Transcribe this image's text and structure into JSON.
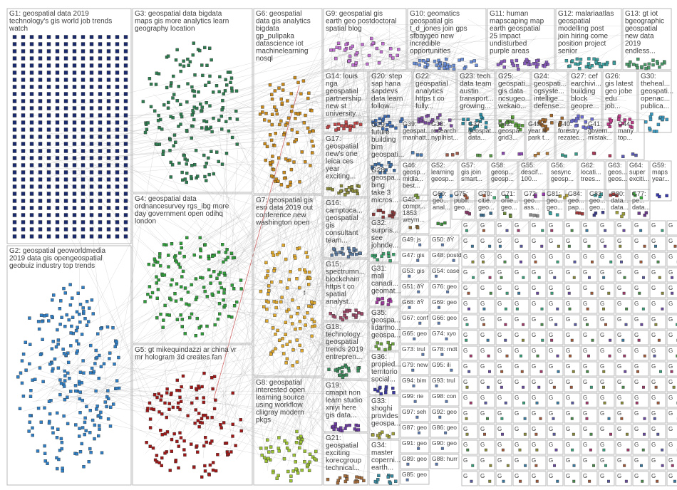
{
  "groups": [
    {
      "id": "G1",
      "lines": [
        "G1: geospatial data 2019",
        "technology's gis world job trends",
        "watch"
      ],
      "color": "#1a2a6e",
      "kind": "grid"
    },
    {
      "id": "G2",
      "lines": [
        "G2: geospatial geoworldmedia",
        "2019 data gis opengeospatial",
        "geobuiz industry top trends"
      ],
      "color": "#2f7fc6",
      "kind": "cluster"
    },
    {
      "id": "G3",
      "lines": [
        "G3: geospatial data bigdata",
        "maps gis more analytics learn",
        "geography location"
      ],
      "color": "#2e7d50",
      "kind": "cluster"
    },
    {
      "id": "G4",
      "lines": [
        "G4: geospatial data",
        "ordnancesurvey rgs_ibg more",
        "day government open odihq",
        "london"
      ],
      "color": "#2f9e3a",
      "kind": "cluster"
    },
    {
      "id": "G5",
      "lines": [
        "G5: gt mikequindazzi ar china vr",
        "mr hologram 3d creates fan"
      ],
      "color": "#a01818",
      "kind": "cluster"
    },
    {
      "id": "G6",
      "lines": [
        "G6: geospatial",
        "data gis analytics",
        "bigdata",
        "gp_pulipaka",
        "datascience iot",
        "machinelearning",
        "nosql"
      ],
      "color": "#c98a1a",
      "kind": "cluster"
    },
    {
      "id": "G7",
      "lines": [
        "G7: geospatial gis",
        "esri data 2019 out",
        "conference new",
        "washington open"
      ],
      "color": "#e0a82a",
      "kind": "cluster"
    },
    {
      "id": "G8",
      "lines": [
        "G8: geospatial",
        "interested open",
        "learning source",
        "using workflow",
        "cliigray modern",
        "pkgs"
      ],
      "color": "#9bc232",
      "kind": "cluster"
    },
    {
      "id": "G9",
      "lines": [
        "G9: geospatial gis",
        "earth geo postdoctoral",
        "spatial blog"
      ],
      "color": "#c070d0",
      "kind": "cluster"
    },
    {
      "id": "G10",
      "lines": [
        "G10: geomatics",
        "geospatial gis",
        "t_d_jones join gps",
        "sfbaygeo new",
        "incredible",
        "opportunities"
      ],
      "color": "#6a8fd8",
      "kind": "cluster"
    },
    {
      "id": "G11",
      "lines": [
        "G11: human",
        "mapscaping map",
        "earth geospatial",
        "25 impact",
        "undisturbed",
        "purple areas"
      ],
      "color": "#8a5cc0",
      "kind": "cluster"
    },
    {
      "id": "G12",
      "lines": [
        "G12: malariaatlas",
        "geospatial",
        "modelling post",
        "join hiring come",
        "position project",
        "senior"
      ],
      "color": "#3aa0a0",
      "kind": "cluster"
    },
    {
      "id": "G13",
      "lines": [
        "G13: gt iot",
        "bgeographic",
        "geospatial",
        "new data",
        "2019",
        "endless..."
      ],
      "color": "#4a9a6a",
      "kind": "cluster"
    },
    {
      "id": "G14",
      "lines": [
        "G14: louis",
        "nga",
        "geospatial",
        "partnership",
        "new st",
        "university..."
      ],
      "color": "#c04848",
      "kind": "cluster"
    },
    {
      "id": "G20",
      "lines": [
        "G20: step",
        "sap hana",
        "sapdevs",
        "data learn",
        "follow..."
      ],
      "color": "#3a68b0",
      "kind": "cluster"
    },
    {
      "id": "G22",
      "lines": [
        "G22:",
        "geospatial",
        "analytics",
        "https t co",
        "fully..."
      ],
      "color": "#7a4aa0",
      "kind": "cluster"
    },
    {
      "id": "G23",
      "lines": [
        "G23: tech",
        "data team",
        "austin",
        "transport...",
        "growing..."
      ],
      "color": "#2a8aa0",
      "kind": "cluster"
    },
    {
      "id": "G25",
      "lines": [
        "G25:",
        "geospati...",
        "gis data",
        "ncsugeo...",
        "wekaio..."
      ],
      "color": "#5aa03a",
      "kind": "cluster"
    },
    {
      "id": "G24",
      "lines": [
        "G24:",
        "geospati...",
        "ogsyste...",
        "intellige...",
        "defense..."
      ],
      "color": "#a0662a",
      "kind": "cluster"
    },
    {
      "id": "G27",
      "lines": [
        "G27: cef",
        "earchivi...",
        "building",
        "block",
        "geopre..."
      ],
      "color": "#6a6ad0",
      "kind": "cluster"
    },
    {
      "id": "G26",
      "lines": [
        "G26:",
        "gis latest",
        "geo jobe",
        "edu",
        "job..."
      ],
      "color": "#c03a8a",
      "kind": "cluster"
    },
    {
      "id": "G30",
      "lines": [
        "G30:",
        "theheal...",
        "geospati...",
        "openac...",
        "publica..."
      ],
      "color": "#3a9ac0",
      "kind": "cluster"
    },
    {
      "id": "G17",
      "lines": [
        "G17:",
        "geospatial",
        "new's one",
        "leica ces",
        "year",
        "exciting..."
      ],
      "color": "#8a8a3a",
      "kind": "cluster"
    },
    {
      "id": "G16",
      "lines": [
        "G16:",
        "camptoca...",
        "geospatial",
        "gis",
        "consultant",
        "team..."
      ],
      "color": "#5a7aa0",
      "kind": "cluster"
    },
    {
      "id": "G15",
      "lines": [
        "G15:",
        "spectrumn...",
        "blockchain",
        "https t co",
        "spatial",
        "analyst..."
      ],
      "color": "#a04a6a",
      "kind": "cluster"
    },
    {
      "id": "G18",
      "lines": [
        "G18:",
        "technology",
        "geospatial",
        "trends 2019",
        "entrepren..."
      ],
      "color": "#3a8a5a",
      "kind": "cluster"
    },
    {
      "id": "G19",
      "lines": [
        "G19:",
        "cmapit non",
        "learn studio",
        "xniyi here",
        "gis data..."
      ],
      "color": "#6a3aa0",
      "kind": "cluster"
    },
    {
      "id": "G21",
      "lines": [
        "G21:",
        "geospatial",
        "exciting",
        "korecgroup",
        "technical..."
      ],
      "color": "#a06a3a",
      "kind": "cluster"
    },
    {
      "id": "G29",
      "lines": [
        "G29:",
        "future",
        "building",
        "bim",
        "geospati..."
      ],
      "color": "#3a6aa0",
      "kind": "cluster"
    },
    {
      "id": "G28",
      "lines": [
        "G28:",
        "geospa...",
        "bing",
        "take 3",
        "micros..."
      ],
      "color": "#8a3a3a",
      "kind": "cluster"
    },
    {
      "id": "G32",
      "lines": [
        "G32:",
        "surpris...",
        "see",
        "johnde..."
      ],
      "color": "#3aa06a",
      "kind": "cluster"
    },
    {
      "id": "G31",
      "lines": [
        "G31:",
        "mali",
        "canadi...",
        "geomat..."
      ],
      "color": "#a03aa0",
      "kind": "cluster"
    },
    {
      "id": "G35",
      "lines": [
        "G35:",
        "geospa...",
        "lidarmo...",
        "geospa..."
      ],
      "color": "#6aa03a",
      "kind": "cluster"
    },
    {
      "id": "G36",
      "lines": [
        "G36:",
        "propied...",
        "territorio",
        "social..."
      ],
      "color": "#3a3aa0",
      "kind": "cluster"
    },
    {
      "id": "G33",
      "lines": [
        "G33:",
        "shoghi",
        "provides",
        "geospa..."
      ],
      "color": "#a0a03a",
      "kind": "cluster"
    },
    {
      "id": "G34",
      "lines": [
        "G34:",
        "master",
        "coperni...",
        "earth..."
      ],
      "color": "#3a8aa0",
      "kind": "cluster"
    }
  ],
  "small_groups": [
    {
      "id": "G39",
      "lines": [
        "G39:",
        "geospat...",
        "manhatt..."
      ],
      "color": "#4a7ab0"
    },
    {
      "id": "G38",
      "lines": [
        "G38:",
        "research",
        "nyplhist..."
      ],
      "color": "#a05a4a"
    },
    {
      "id": "G37",
      "lines": [
        "G37:",
        "geospat...",
        "data..."
      ],
      "color": "#5a9a4a"
    },
    {
      "id": "G42",
      "lines": [
        "G42:",
        "geospa...",
        "grid3..."
      ],
      "color": "#8a4ab0"
    },
    {
      "id": "G43",
      "lines": [
        "G43:",
        "year a",
        "park t..."
      ],
      "color": "#b07a3a"
    },
    {
      "id": "G40",
      "lines": [
        "G40:",
        "forestry",
        "rezatec..."
      ],
      "color": "#3a9a8a"
    },
    {
      "id": "G41",
      "lines": [
        "G41:",
        "govern...",
        "mistak..."
      ],
      "color": "#b03a5a"
    },
    {
      "id": "G44",
      "lines": [
        "G44:",
        "many",
        "top..."
      ],
      "color": "#5a5ab0"
    },
    {
      "id": "G46",
      "lines": [
        "G46:",
        "geosp...",
        "midla...",
        "best..."
      ],
      "color": "#7a9a3a"
    },
    {
      "id": "G52",
      "lines": [
        "G52:",
        "learning",
        "geosp..."
      ],
      "color": "#3a7ab0"
    },
    {
      "id": "G57",
      "lines": [
        "G57:",
        "gis join",
        "smart..."
      ],
      "color": "#b05a3a"
    },
    {
      "id": "G58",
      "lines": [
        "G58:",
        "geosp...",
        "geosp..."
      ],
      "color": "#4ab07a"
    },
    {
      "id": "G55",
      "lines": [
        "G55:",
        "descif...",
        "100..."
      ],
      "color": "#9a3ab0"
    },
    {
      "id": "G56",
      "lines": [
        "G56:",
        "sesync",
        "geosp..."
      ],
      "color": "#b0a03a"
    },
    {
      "id": "G62",
      "lines": [
        "G62:",
        "locati...",
        "trees..."
      ],
      "color": "#3ab0b0"
    },
    {
      "id": "G63",
      "lines": [
        "G63:",
        "geos...",
        "geos..."
      ],
      "color": "#b03a3a"
    },
    {
      "id": "G64",
      "lines": [
        "G64:",
        "super",
        "exciti..."
      ],
      "color": "#3ab03a"
    },
    {
      "id": "G59",
      "lines": [
        "G59:",
        "maps",
        "year..."
      ],
      "color": "#3a3ab0"
    },
    {
      "id": "G45",
      "lines": [
        "G45:",
        "compr...",
        "1853",
        "weym..."
      ],
      "color": "#8a6a3a"
    },
    {
      "id": "G60",
      "lines": [
        "G60:",
        "geo...",
        "anal..."
      ],
      "color": "#3a8a3a"
    },
    {
      "id": "G75",
      "lines": [
        "G75:",
        "publi...",
        "geo..."
      ],
      "color": "#8a3a6a"
    },
    {
      "id": "G70",
      "lines": [
        "G70:",
        "citie...",
        "geo..."
      ],
      "color": "#3a6a8a"
    },
    {
      "id": "G71",
      "lines": [
        "G71:",
        "onie...",
        "geo..."
      ],
      "color": "#6a8a3a"
    },
    {
      "id": "G72",
      "lines": [
        "G72:",
        "geo...",
        "ass..."
      ],
      "color": "#8a8a8a"
    },
    {
      "id": "G81",
      "lines": [
        "G81:",
        "geo...",
        "geo..."
      ],
      "color": "#3aa0a0"
    },
    {
      "id": "G84",
      "lines": [
        "G84:",
        "geo...",
        "pap..."
      ],
      "color": "#a03a3a"
    },
    {
      "id": "G83",
      "lines": [
        "G83:",
        "geo...",
        "geo..."
      ],
      "color": "#3a3a8a"
    },
    {
      "id": "G80",
      "lines": [
        "G80:",
        "data...",
        "data..."
      ],
      "color": "#a0a03a"
    },
    {
      "id": "G77",
      "lines": [
        "G77:",
        "pe...",
        "data..."
      ],
      "color": "#6a3a8a"
    }
  ],
  "tiny_labels": [
    "G49: js",
    "G50: ðŸ",
    "G47: gis",
    "G48: postd",
    "G53: gis",
    "G54: case",
    "G51: ðŸ",
    "G76: geo",
    "G68: ðŸ",
    "G69: geo",
    "G67: conf",
    "G66: geo",
    "G65: geo",
    "G74: xyo",
    "G73: trul",
    "G78: rndt",
    "G79: new",
    "G95: ili",
    "G94: bim",
    "G93: trul",
    "G99: rie",
    "G98: con",
    "G97: seh",
    "G92: geo",
    "G87: geo",
    "G86: geo",
    "G91: geo",
    "G90: geo",
    "G89: geo",
    "G88: hurr",
    "G85: geo"
  ],
  "link_label": "f"
}
